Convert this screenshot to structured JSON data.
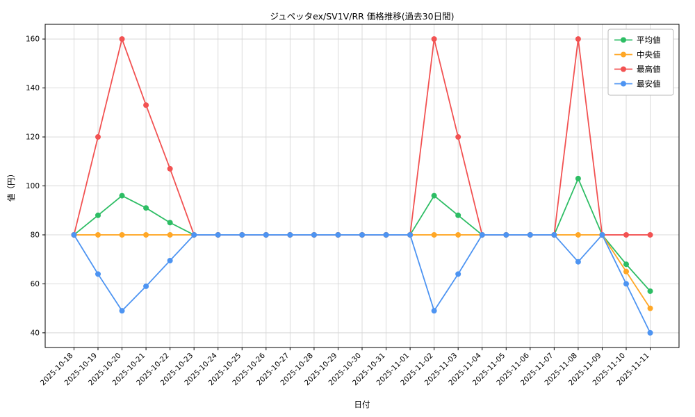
{
  "chart_data": {
    "type": "line",
    "title": "ジュペッタex/SV1V/RR 価格推移(過去30日間)",
    "xlabel": "日付",
    "ylabel": "値（円）",
    "grid": true,
    "legend_position": "top-right",
    "ylim": [
      34,
      166
    ],
    "yticks": [
      40,
      60,
      80,
      100,
      120,
      140,
      160
    ],
    "categories": [
      "2025-10-18",
      "2025-10-19",
      "2025-10-20",
      "2025-10-21",
      "2025-10-22",
      "2025-10-23",
      "2025-10-24",
      "2025-10-25",
      "2025-10-26",
      "2025-10-27",
      "2025-10-28",
      "2025-10-29",
      "2025-10-30",
      "2025-10-31",
      "2025-11-01",
      "2025-11-02",
      "2025-11-03",
      "2025-11-04",
      "2025-11-05",
      "2025-11-06",
      "2025-11-07",
      "2025-11-08",
      "2025-11-09",
      "2025-11-10",
      "2025-11-11"
    ],
    "series": [
      {
        "name": "平均値",
        "key": "average",
        "color": "#2dbd64",
        "values": [
          80,
          88,
          96,
          91,
          85,
          80,
          80,
          80,
          80,
          80,
          80,
          80,
          80,
          80,
          80,
          96,
          88,
          80,
          80,
          80,
          80,
          103,
          80,
          68,
          57
        ]
      },
      {
        "name": "中央値",
        "key": "median",
        "color": "#ffa726",
        "values": [
          80,
          80,
          80,
          80,
          80,
          80,
          80,
          80,
          80,
          80,
          80,
          80,
          80,
          80,
          80,
          80,
          80,
          80,
          80,
          80,
          80,
          80,
          80,
          65,
          50
        ]
      },
      {
        "name": "最高値",
        "key": "max",
        "color": "#f25252",
        "values": [
          80,
          120,
          160,
          133,
          107,
          80,
          80,
          80,
          80,
          80,
          80,
          80,
          80,
          80,
          80,
          160,
          120,
          80,
          80,
          80,
          80,
          160,
          80,
          80,
          80
        ]
      },
      {
        "name": "最安値",
        "key": "min",
        "color": "#4d94f2",
        "values": [
          80,
          64,
          49,
          59,
          69.5,
          80,
          80,
          80,
          80,
          80,
          80,
          80,
          80,
          80,
          80,
          49,
          64,
          80,
          80,
          80,
          80,
          69,
          80,
          60,
          40
        ]
      }
    ]
  },
  "colors": {
    "grid": "#d6d6d6",
    "axis": "#000000",
    "legend_border": "#b9b9b9",
    "background": "#ffffff"
  }
}
